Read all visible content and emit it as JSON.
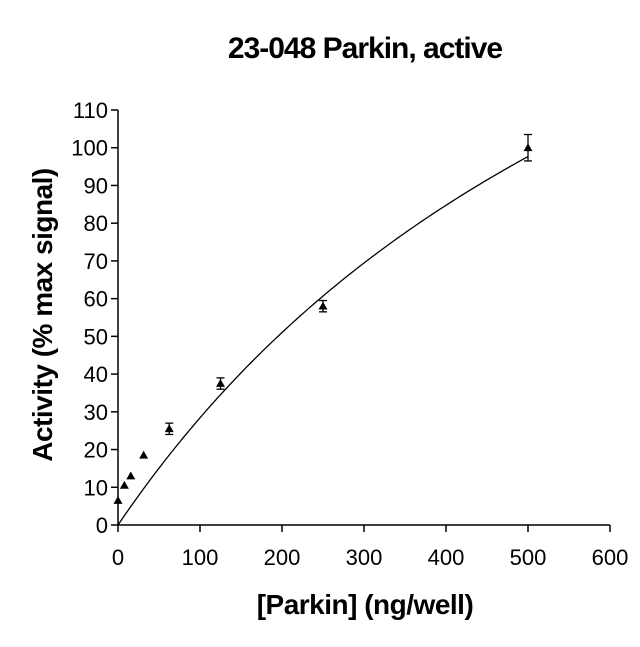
{
  "chart_data": {
    "type": "scatter",
    "title": "23-048 Parkin, active",
    "xlabel": "[Parkin] (ng/well)",
    "ylabel": "Activity (% max signal)",
    "xlim": [
      0,
      600
    ],
    "ylim": [
      0,
      110
    ],
    "xticks": [
      0,
      100,
      200,
      300,
      400,
      500,
      600
    ],
    "yticks": [
      0,
      10,
      20,
      30,
      40,
      50,
      60,
      70,
      80,
      90,
      100,
      110
    ],
    "grid": false,
    "legend": "none",
    "marker": "triangle",
    "colors": {
      "marker": "#000000",
      "axis": "#000000",
      "fit": "#000000"
    },
    "series": [
      {
        "x": [
          0,
          7.8,
          15.6,
          31.25,
          62.5,
          125,
          250,
          500
        ],
        "y": [
          6.5,
          10.5,
          13,
          18.5,
          25.5,
          37.5,
          58,
          100
        ],
        "error": [
          0,
          0,
          0,
          0,
          1.5,
          1.5,
          1.5,
          3.5
        ]
      }
    ],
    "fit_curve": {
      "model": "saturation",
      "vmax": 250,
      "km": 780
    }
  }
}
